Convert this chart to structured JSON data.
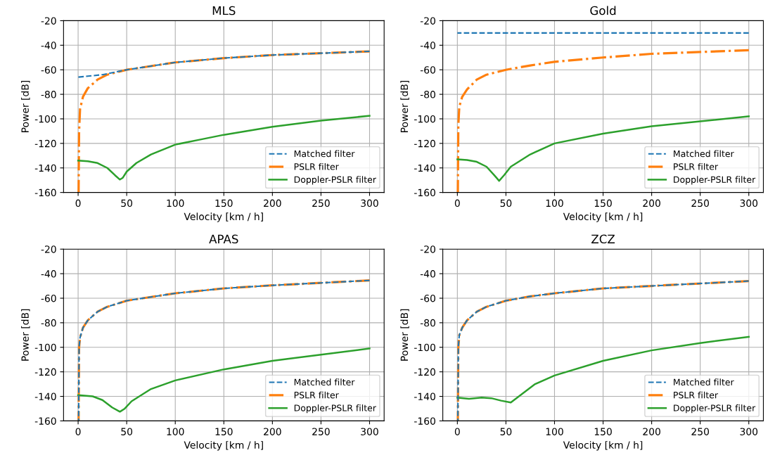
{
  "chart_data": [
    {
      "type": "line",
      "title": "MLS",
      "xlabel": "Velocity [km / h]",
      "ylabel": "Power [dB]",
      "xlim": [
        -15,
        315
      ],
      "ylim": [
        -160,
        -20
      ],
      "xticks": [
        0,
        50,
        100,
        150,
        200,
        250,
        300
      ],
      "yticks": [
        -160,
        -140,
        -120,
        -100,
        -80,
        -60,
        -40,
        -20
      ],
      "grid": true,
      "legend": "bottom right",
      "series": [
        {
          "name": "Matched filter",
          "color": "#1f77b4",
          "line_style": "dashed",
          "x": [
            0,
            25,
            50,
            75,
            100,
            150,
            200,
            250,
            300
          ],
          "values": [
            -66,
            -64,
            -60,
            -57,
            -54,
            -50.5,
            -48,
            -46.5,
            -45
          ]
        },
        {
          "name": "PSLR filter",
          "color": "#ff7f0e",
          "line_style": "dashdot",
          "x": [
            0.5,
            1,
            2,
            5,
            10,
            20,
            30,
            50,
            75,
            100,
            150,
            200,
            250,
            300
          ],
          "values": [
            -160,
            -110,
            -92,
            -82,
            -75,
            -68,
            -64,
            -60,
            -57,
            -54,
            -50.5,
            -48,
            -46.5,
            -45
          ]
        },
        {
          "name": "Doppler-PSLR filter",
          "color": "#2ca02c",
          "line_style": "solid",
          "x": [
            0,
            10,
            20,
            30,
            38,
            43,
            46,
            50,
            60,
            75,
            100,
            125,
            150,
            200,
            250,
            300
          ],
          "values": [
            -134,
            -134.5,
            -136,
            -140,
            -146,
            -149.5,
            -148,
            -143,
            -136,
            -129,
            -121,
            -117,
            -113,
            -106.5,
            -101.5,
            -97.5
          ]
        }
      ]
    },
    {
      "type": "line",
      "title": "Gold",
      "xlabel": "Velocity [km / h]",
      "ylabel": "Power [dB]",
      "xlim": [
        -15,
        315
      ],
      "ylim": [
        -160,
        -20
      ],
      "xticks": [
        0,
        50,
        100,
        150,
        200,
        250,
        300
      ],
      "yticks": [
        -160,
        -140,
        -120,
        -100,
        -80,
        -60,
        -40,
        -20
      ],
      "grid": true,
      "legend": "bottom right",
      "series": [
        {
          "name": "Matched filter",
          "color": "#1f77b4",
          "line_style": "dashed",
          "x": [
            0,
            100,
            200,
            300
          ],
          "values": [
            -30,
            -30,
            -30,
            -30
          ]
        },
        {
          "name": "PSLR filter",
          "color": "#ff7f0e",
          "line_style": "dashdot",
          "x": [
            0.5,
            1,
            2,
            5,
            10,
            20,
            30,
            50,
            75,
            100,
            150,
            200,
            250,
            300
          ],
          "values": [
            -160,
            -105,
            -90,
            -82,
            -76,
            -68,
            -64,
            -60,
            -56.5,
            -53.5,
            -50,
            -47,
            -45.5,
            -44
          ]
        },
        {
          "name": "Doppler-PSLR filter",
          "color": "#2ca02c",
          "line_style": "solid",
          "x": [
            0,
            10,
            20,
            30,
            38,
            43,
            48,
            55,
            75,
            100,
            150,
            200,
            250,
            300
          ],
          "values": [
            -133,
            -133.5,
            -135,
            -139,
            -146,
            -150.5,
            -146,
            -139,
            -129,
            -120,
            -112,
            -106,
            -102,
            -98
          ]
        }
      ]
    },
    {
      "type": "line",
      "title": "APAS",
      "xlabel": "Velocity [km / h]",
      "ylabel": "Power [dB]",
      "xlim": [
        -15,
        315
      ],
      "ylim": [
        -160,
        -20
      ],
      "xticks": [
        0,
        50,
        100,
        150,
        200,
        250,
        300
      ],
      "yticks": [
        -160,
        -140,
        -120,
        -100,
        -80,
        -60,
        -40,
        -20
      ],
      "grid": true,
      "legend": "bottom right",
      "series": [
        {
          "name": "Matched filter",
          "color": "#1f77b4",
          "line_style": "dashed",
          "x": [
            0.5,
            1,
            2,
            5,
            10,
            20,
            30,
            50,
            75,
            100,
            150,
            200,
            250,
            300
          ],
          "values": [
            -160,
            -100,
            -92,
            -84,
            -78,
            -71,
            -67,
            -62,
            -59,
            -56,
            -52,
            -49.5,
            -47.5,
            -45.5
          ]
        },
        {
          "name": "PSLR filter",
          "color": "#ff7f0e",
          "line_style": "dashdot",
          "x": [
            0.5,
            1,
            2,
            5,
            10,
            20,
            30,
            50,
            75,
            100,
            150,
            200,
            250,
            300
          ],
          "values": [
            -160,
            -100,
            -92,
            -84,
            -78,
            -71,
            -67,
            -62,
            -59,
            -56,
            -52,
            -49.5,
            -47.5,
            -45.5
          ]
        },
        {
          "name": "Doppler-PSLR filter",
          "color": "#2ca02c",
          "line_style": "solid",
          "x": [
            0,
            15,
            25,
            35,
            43,
            48,
            55,
            75,
            100,
            150,
            200,
            250,
            300
          ],
          "values": [
            -139,
            -140,
            -143,
            -149,
            -152.5,
            -150,
            -144,
            -134,
            -127,
            -118,
            -111,
            -106,
            -101
          ]
        }
      ]
    },
    {
      "type": "line",
      "title": "ZCZ",
      "xlabel": "Velocity [km / h]",
      "ylabel": "Power [dB]",
      "xlim": [
        -15,
        315
      ],
      "ylim": [
        -160,
        -20
      ],
      "xticks": [
        0,
        50,
        100,
        150,
        200,
        250,
        300
      ],
      "yticks": [
        -160,
        -140,
        -120,
        -100,
        -80,
        -60,
        -40,
        -20
      ],
      "grid": true,
      "legend": "bottom right",
      "series": [
        {
          "name": "Matched filter",
          "color": "#1f77b4",
          "line_style": "dashed",
          "x": [
            0.5,
            1,
            2,
            5,
            10,
            20,
            30,
            50,
            75,
            100,
            150,
            200,
            250,
            300
          ],
          "values": [
            -160,
            -100,
            -90,
            -84,
            -78,
            -71,
            -67,
            -62,
            -58.5,
            -56,
            -52,
            -50,
            -48,
            -46
          ]
        },
        {
          "name": "PSLR filter",
          "color": "#ff7f0e",
          "line_style": "dashdot",
          "x": [
            0.5,
            1,
            2,
            5,
            10,
            20,
            30,
            50,
            75,
            100,
            150,
            200,
            250,
            300
          ],
          "values": [
            -160,
            -100,
            -90,
            -84,
            -78,
            -71,
            -67,
            -62,
            -58.5,
            -56,
            -52,
            -50,
            -48,
            -46
          ]
        },
        {
          "name": "Doppler-PSLR filter",
          "color": "#2ca02c",
          "line_style": "solid",
          "x": [
            0,
            12,
            25,
            35,
            45,
            55,
            65,
            80,
            100,
            150,
            200,
            250,
            300
          ],
          "values": [
            -141,
            -142,
            -141,
            -141.5,
            -143.5,
            -145,
            -139,
            -130,
            -123,
            -111,
            -102.5,
            -96.5,
            -91.5
          ]
        }
      ]
    }
  ]
}
